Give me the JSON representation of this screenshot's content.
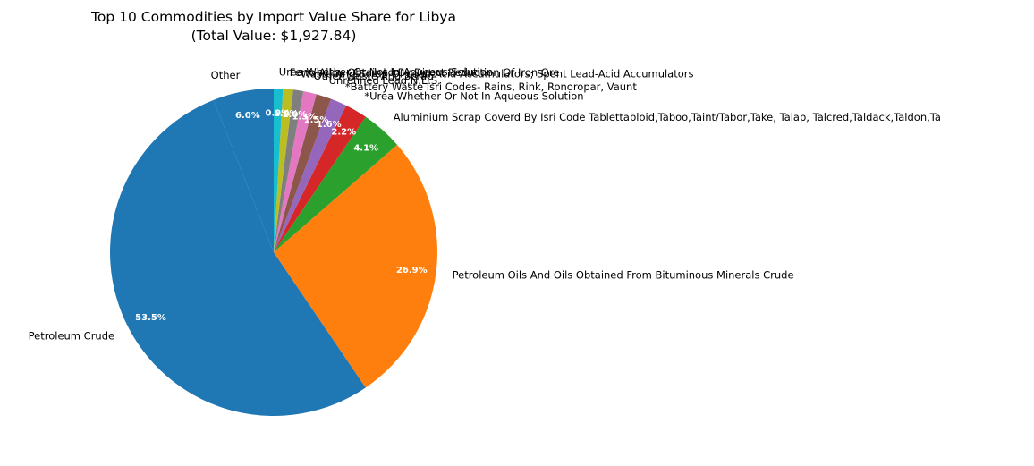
{
  "chart_data": {
    "type": "pie",
    "title": "Top 10 Commodities by Import Value Share for Libya",
    "subtitle": "(Total Value: $1,927.84)",
    "start_angle_deg": 90,
    "direction": "counterclockwise",
    "slices": [
      {
        "label": "Other",
        "value": 6.0,
        "pct_label": "6.0%",
        "color": "#1f77b4"
      },
      {
        "label": "Petroleum Crude",
        "value": 53.5,
        "pct_label": "53.5%",
        "color": "#1f77b4"
      },
      {
        "label": "Petroleum Oils And Oils Obtained From Bituminous Minerals Crude",
        "value": 26.9,
        "pct_label": "26.9%",
        "color": "#ff7f0e"
      },
      {
        "label": "Aluminium Scrap Coverd By Isri Code Tablettabloid,Taboo,Taint/Tabor,Take, Talap, Talcred,Taldack,Taldon,Ta",
        "value": 4.1,
        "pct_label": "4.1%",
        "color": "#2ca02c"
      },
      {
        "label": "*Urea Whether Or Not In Aqueous Solution",
        "value": 2.2,
        "pct_label": "2.2%",
        "color": "#d62728"
      },
      {
        "label": "*Battery Waste Isri Codes- Rains, Rink, Ronoropar, Vaunt",
        "value": 1.6,
        "pct_label": "1.6%",
        "color": "#9467bd"
      },
      {
        "label": "Unrefined Lead,N.E.S.",
        "value": 1.5,
        "pct_label": "1.5%",
        "color": "#8c564b"
      },
      {
        "label": "Other Waste And Scrap",
        "value": 1.3,
        "pct_label": "1.3%",
        "color": "#e377c2"
      },
      {
        "label": "Waste And Scrap Of Lead-Acid Accumulators; Spent Lead-Acid Accumulators",
        "value": 1.0,
        "pct_label": "1.0%",
        "color": "#7f7f7f"
      },
      {
        "label": "Ferro Alloy Obtained By Direct Reduction Of Iron Ore",
        "value": 1.0,
        "pct_label": "1.0%",
        "color": "#bcbd22"
      },
      {
        "label": "Urea Whether Or Not In Aqueous Solution",
        "value": 0.9,
        "pct_label": "0.9%",
        "color": "#17becf"
      }
    ]
  }
}
